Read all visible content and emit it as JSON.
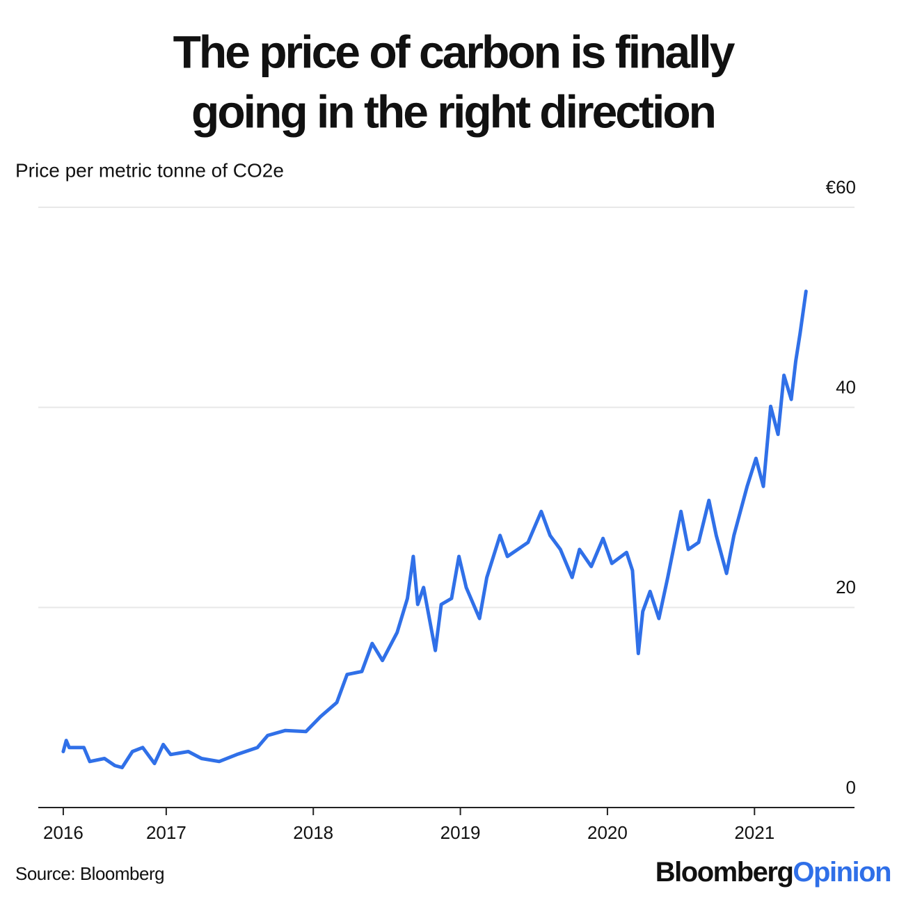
{
  "chart_data": {
    "type": "line",
    "title": [
      "The price of carbon is finally",
      "going in the right direction"
    ],
    "subtitle": "Price per metric tonne of CO2e",
    "source": "Source: Bloomberg",
    "brand": [
      "Bloomberg",
      "Opinion"
    ],
    "x": [
      2016.3,
      2016.32,
      2016.34,
      2016.44,
      2016.48,
      2016.58,
      2016.65,
      2016.7,
      2016.77,
      2016.84,
      2016.92,
      2016.98,
      2017.03,
      2017.15,
      2017.24,
      2017.36,
      2017.48,
      2017.62,
      2017.69,
      2017.81,
      2017.95,
      2018.05,
      2018.16,
      2018.23,
      2018.33,
      2018.4,
      2018.47,
      2018.57,
      2018.64,
      2018.68,
      2018.71,
      2018.75,
      2018.83,
      2018.87,
      2018.94,
      2018.99,
      2019.04,
      2019.13,
      2019.18,
      2019.27,
      2019.32,
      2019.39,
      2019.46,
      2019.55,
      2019.61,
      2019.68,
      2019.76,
      2019.81,
      2019.89,
      2019.97,
      2020.03,
      2020.13,
      2020.17,
      2020.21,
      2020.24,
      2020.29,
      2020.35,
      2020.41,
      2020.5,
      2020.55,
      2020.62,
      2020.69,
      2020.74,
      2020.81,
      2020.86,
      2020.95,
      2021.01,
      2021.06,
      2021.11,
      2021.16,
      2021.2,
      2021.25,
      2021.28,
      2021.31,
      2021.35
    ],
    "series": [
      {
        "name": "Price",
        "color": "#3070e8",
        "values": [
          5.6,
          6.7,
          6.0,
          6.0,
          4.6,
          4.9,
          4.2,
          4.0,
          5.6,
          6.0,
          4.4,
          6.3,
          5.3,
          5.6,
          4.9,
          4.6,
          5.3,
          6.0,
          7.2,
          7.7,
          7.6,
          9.1,
          10.5,
          13.3,
          13.6,
          16.4,
          14.7,
          17.5,
          20.9,
          25.1,
          20.3,
          22.0,
          15.7,
          20.3,
          20.9,
          25.1,
          22.0,
          18.9,
          23.0,
          27.2,
          25.1,
          25.8,
          26.5,
          29.6,
          27.2,
          25.8,
          23.0,
          25.8,
          24.1,
          26.9,
          24.4,
          25.5,
          23.7,
          15.4,
          19.6,
          21.6,
          18.9,
          23.0,
          29.6,
          25.8,
          26.5,
          30.7,
          27.2,
          23.4,
          27.2,
          32.1,
          34.9,
          32.1,
          40.1,
          37.3,
          43.2,
          40.8,
          44.6,
          47.4,
          51.6
        ]
      }
    ],
    "xlim": [
      2016.13,
      2021.68
    ],
    "xticks": [
      {
        "value": 2016.3,
        "label": "2016"
      },
      2017,
      2018,
      2019,
      2020,
      2021
    ],
    "ylim": [
      0,
      60
    ],
    "yticks": [
      0,
      20,
      40,
      {
        "value": 60,
        "label": "€60"
      }
    ],
    "grid": true
  }
}
